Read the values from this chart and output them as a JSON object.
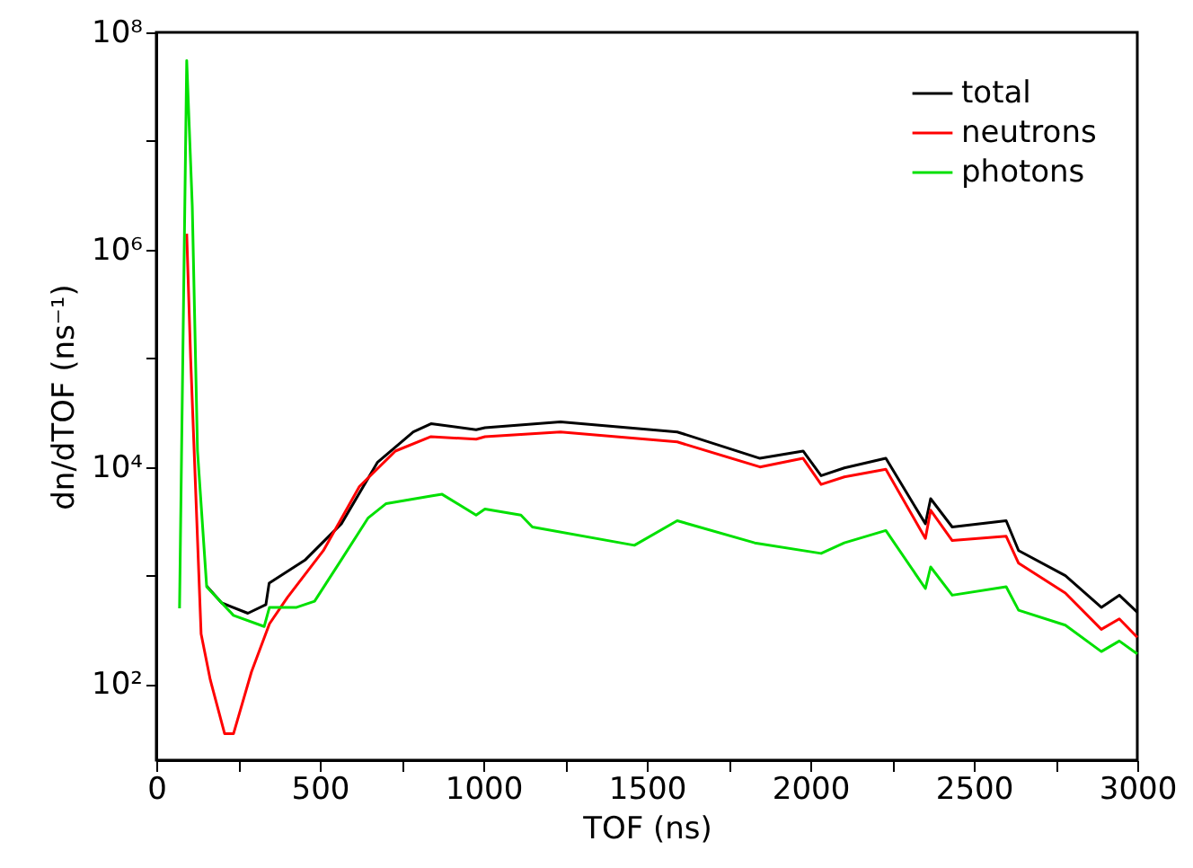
{
  "chart_data": {
    "type": "line",
    "xlabel": "TOF (ns)",
    "ylabel": "dn/dTOF (ns⁻¹)",
    "log": "y",
    "legend": "top right",
    "grid": false,
    "line_style": "solid",
    "marker": "none",
    "xlim": [
      0,
      3000
    ],
    "xticks": [
      0,
      {
        "value": 250,
        "label": null
      },
      500,
      {
        "value": 750,
        "label": null
      },
      1000,
      {
        "value": 1250,
        "label": null
      },
      1500,
      {
        "value": 1750,
        "label": null
      },
      2000,
      {
        "value": 2250,
        "label": null
      },
      2500,
      {
        "value": 2750,
        "label": null
      },
      3000
    ],
    "ylim": [
      20,
      100000000
    ],
    "yticks": [
      {
        "value": 100,
        "label": "10²"
      },
      {
        "value": 1000,
        "label": null
      },
      {
        "value": 10000,
        "label": "10⁴"
      },
      {
        "value": 100000,
        "label": null
      },
      {
        "value": 1000000,
        "label": "10⁶"
      },
      {
        "value": 10000000,
        "label": null
      },
      {
        "value": 100000000,
        "label": "10⁸"
      }
    ],
    "series": [
      {
        "name": "total",
        "color": "#000000",
        "x": [
          154,
          200,
          280,
          335,
          345,
          456,
          566,
          676,
          786,
          840,
          978,
          1005,
          1236,
          1593,
          1846,
          1978,
          2033,
          2104,
          2231,
          2352,
          2368,
          2434,
          2599,
          2637,
          2780,
          2890,
          2945,
          3000
        ],
        "values": [
          800,
          560,
          450,
          540,
          850,
          1400,
          3000,
          11000,
          21000,
          25000,
          22000,
          23000,
          26000,
          21000,
          12000,
          14000,
          8300,
          9800,
          12000,
          3000,
          5100,
          2800,
          3200,
          1700,
          1000,
          510,
          660,
          460
        ]
      },
      {
        "name": "neutrons",
        "color": "#ff0000",
        "x": [
          93,
          105,
          137,
          165,
          209,
          236,
          291,
          346,
          401,
          511,
          621,
          731,
          840,
          978,
          1005,
          1236,
          1593,
          1846,
          1978,
          2033,
          2104,
          2231,
          2352,
          2368,
          2434,
          2599,
          2637,
          2780,
          2890,
          2945,
          3000
        ],
        "values": [
          1400000,
          100000,
          290,
          110,
          35,
          35,
          130,
          360,
          630,
          1700,
          6600,
          14000,
          19000,
          18000,
          19000,
          21000,
          17000,
          10000,
          12000,
          6900,
          8100,
          9500,
          2200,
          4000,
          2100,
          2300,
          1300,
          690,
          320,
          400,
          270
        ]
      },
      {
        "name": "photons",
        "color": "#00e000",
        "x": [
          71,
          93,
          110,
          126,
          154,
          236,
          330,
          346,
          429,
          484,
          566,
          648,
          703,
          840,
          874,
          978,
          1005,
          1115,
          1150,
          1462,
          1593,
          1830,
          2033,
          2104,
          2231,
          2352,
          2368,
          2434,
          2599,
          2637,
          2780,
          2890,
          2945,
          3000
        ],
        "values": [
          500,
          55000000,
          2500000,
          14000,
          790,
          430,
          340,
          510,
          510,
          580,
          1400,
          3400,
          4600,
          5400,
          5600,
          3600,
          4100,
          3600,
          2800,
          1900,
          3200,
          2000,
          1600,
          2000,
          2600,
          760,
          1200,
          660,
          790,
          480,
          350,
          200,
          250,
          190
        ]
      }
    ]
  }
}
